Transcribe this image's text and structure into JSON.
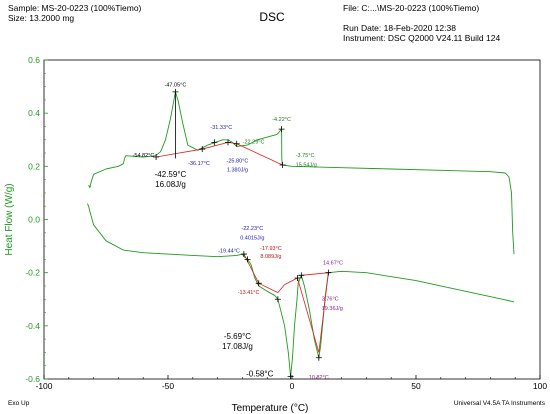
{
  "header": {
    "sample": "Sample: MS-20-0223 (100%Tiemo)",
    "size": "Size:  13.2000 mg",
    "title": "DSC",
    "file": "File: C:...\\MS-20-0223 (100%Tiemo)",
    "run_date": "Run Date: 18-Feb-2020 12:38",
    "instrument": "Instrument: DSC Q2000 V24.11 Build 124"
  },
  "footer": {
    "exo": "Exo Up",
    "software": "Universal V4.5A TA Instruments"
  },
  "colors": {
    "trace": "#1f9a1f",
    "fit": "#e02020",
    "axis_y": "#1f9a1f",
    "blue_ann": "#2020b0",
    "purple_ann": "#8a1a8a",
    "green_ann": "#1f7a1f",
    "red_ann": "#c01010"
  },
  "chart_data": {
    "type": "line",
    "title": "DSC",
    "xlabel": "Temperature (°C)",
    "ylabel": "Heat Flow (W/g)",
    "xlim": [
      -100,
      100
    ],
    "ylim": [
      -0.6,
      0.6
    ],
    "xticks": [
      -100,
      -50,
      0,
      50,
      100
    ],
    "yticks": [
      -0.6,
      -0.4,
      -0.2,
      0.0,
      0.2,
      0.4,
      0.6
    ],
    "xtick_labels": [
      "-100",
      "-50",
      "0",
      "50",
      "100"
    ],
    "ytick_labels": [
      "-0.6",
      "-0.4",
      "-0.2",
      "0.0",
      "0.2",
      "0.4",
      "0.6"
    ],
    "grid": false,
    "series": [
      {
        "segment": "heating",
        "points": [
          [
            -82,
            0.13
          ],
          [
            -81.5,
            0.12
          ],
          [
            -81,
            0.14
          ],
          [
            -80,
            0.17
          ],
          [
            -75,
            0.19
          ],
          [
            -70,
            0.2
          ],
          [
            -68,
            0.21
          ],
          [
            -67.5,
            0.23
          ],
          [
            -67,
            0.24
          ],
          [
            -60,
            0.235
          ],
          [
            -55,
            0.24
          ],
          [
            -53,
            0.255
          ],
          [
            -51,
            0.3
          ],
          [
            -49,
            0.38
          ],
          [
            -47,
            0.48
          ],
          [
            -46,
            0.45
          ],
          [
            -44,
            0.36
          ],
          [
            -42,
            0.28
          ],
          [
            -40,
            0.27
          ],
          [
            -38,
            0.26
          ],
          [
            -36,
            0.27
          ],
          [
            -34,
            0.28
          ],
          [
            -31,
            0.29
          ],
          [
            -28,
            0.3
          ],
          [
            -25.8,
            0.3
          ],
          [
            -24,
            0.29
          ],
          [
            -22.3,
            0.275
          ],
          [
            -18,
            0.28
          ],
          [
            -14,
            0.3
          ],
          [
            -10,
            0.31
          ],
          [
            -6,
            0.32
          ],
          [
            -4.2,
            0.34
          ],
          [
            -4.1,
            0.23
          ],
          [
            -3.9,
            0.205
          ],
          [
            0,
            0.2
          ],
          [
            20,
            0.195
          ],
          [
            40,
            0.19
          ],
          [
            60,
            0.185
          ],
          [
            80,
            0.18
          ],
          [
            86,
            0.175
          ],
          [
            87.5,
            0.16
          ],
          [
            88.5,
            0.1
          ],
          [
            89,
            -0.05
          ],
          [
            89.5,
            -0.13
          ]
        ]
      },
      {
        "segment": "cooling",
        "points": [
          [
            -82.5,
            0.06
          ],
          [
            -82,
            0.05
          ],
          [
            -81.5,
            0.03
          ],
          [
            -80,
            -0.02
          ],
          [
            -75,
            -0.08
          ],
          [
            -68,
            -0.115
          ],
          [
            -60,
            -0.125
          ],
          [
            -50,
            -0.13
          ],
          [
            -40,
            -0.135
          ],
          [
            -30,
            -0.14
          ],
          [
            -22.2,
            -0.135
          ],
          [
            -20,
            -0.13
          ],
          [
            -19.4,
            -0.14
          ],
          [
            -18.5,
            -0.145
          ],
          [
            -17.9,
            -0.15
          ],
          [
            -16.5,
            -0.17
          ],
          [
            -15,
            -0.22
          ],
          [
            -13.4,
            -0.25
          ],
          [
            -10,
            -0.27
          ],
          [
            -7,
            -0.285
          ],
          [
            -5.7,
            -0.3
          ],
          [
            -3,
            -0.4
          ],
          [
            -1.5,
            -0.5
          ],
          [
            -0.58,
            -0.59
          ],
          [
            0.2,
            -0.52
          ],
          [
            1,
            -0.4
          ],
          [
            2,
            -0.3
          ],
          [
            2.5,
            -0.24
          ],
          [
            3.76,
            -0.21
          ],
          [
            5,
            -0.25
          ],
          [
            7,
            -0.34
          ],
          [
            9,
            -0.45
          ],
          [
            10.82,
            -0.52
          ],
          [
            11.5,
            -0.48
          ],
          [
            12.5,
            -0.38
          ],
          [
            13.5,
            -0.28
          ],
          [
            14.67,
            -0.2
          ],
          [
            20,
            -0.195
          ],
          [
            30,
            -0.2
          ],
          [
            50,
            -0.23
          ],
          [
            70,
            -0.27
          ],
          [
            85,
            -0.3
          ],
          [
            89.5,
            -0.31
          ]
        ]
      }
    ],
    "fit_lines": [
      [
        [
          -54.8,
          0.235
        ],
        [
          -36.2,
          0.265
        ]
      ],
      [
        [
          -36.2,
          0.265
        ],
        [
          -25.8,
          0.29
        ]
      ],
      [
        [
          -25.8,
          0.29
        ],
        [
          -22.3,
          0.285
        ]
      ],
      [
        [
          -22.3,
          0.285
        ],
        [
          -3.8,
          0.205
        ]
      ],
      [
        [
          -47,
          0.48
        ],
        [
          -47,
          0.23
        ]
      ],
      [
        [
          -19.4,
          -0.13
        ],
        [
          -13.4,
          -0.24
        ]
      ],
      [
        [
          -13.4,
          -0.24
        ],
        [
          -5.7,
          -0.275
        ]
      ],
      [
        [
          -5.7,
          -0.275
        ],
        [
          -3,
          -0.245
        ]
      ],
      [
        [
          -3,
          -0.245
        ],
        [
          2.2,
          -0.22
        ]
      ],
      [
        [
          2.2,
          -0.22
        ],
        [
          10.82,
          -0.5
        ]
      ],
      [
        [
          10.82,
          -0.5
        ],
        [
          14.67,
          -0.2
        ]
      ],
      [
        [
          3.76,
          -0.21
        ],
        [
          14.67,
          -0.2
        ]
      ]
    ],
    "markers": [
      [
        -54.8,
        0.235
      ],
      [
        -47,
        0.48
      ],
      [
        -36.2,
        0.265
      ],
      [
        -31.3,
        0.29
      ],
      [
        -25.8,
        0.29
      ],
      [
        -22.3,
        0.285
      ],
      [
        -4.2,
        0.34
      ],
      [
        -3.8,
        0.205
      ],
      [
        -19.4,
        -0.13
      ],
      [
        -17.9,
        -0.15
      ],
      [
        -13.4,
        -0.24
      ],
      [
        -5.7,
        -0.3
      ],
      [
        -0.58,
        -0.59
      ],
      [
        3.76,
        -0.21
      ],
      [
        10.82,
        -0.52
      ],
      [
        14.67,
        -0.2
      ],
      [
        2.2,
        -0.22
      ]
    ],
    "annotations": [
      {
        "text": "-47.05°C",
        "x": -47,
        "y": 0.5,
        "color": "black",
        "anchor": "middle"
      },
      {
        "text": "-54.82°C",
        "x": -55.5,
        "y": 0.235,
        "color": "black",
        "anchor": "end"
      },
      {
        "text": "-36.17°C",
        "x": -37.5,
        "y": 0.205,
        "color": "blue",
        "anchor": "middle"
      },
      {
        "text": "-31.33°C",
        "x": -28.5,
        "y": 0.34,
        "color": "blue",
        "anchor": "middle"
      },
      {
        "text": "-25.80°C",
        "x": -22,
        "y": 0.215,
        "color": "blue",
        "anchor": "middle"
      },
      {
        "text": "1.380J/g",
        "x": -22,
        "y": 0.18,
        "color": "blue",
        "anchor": "middle"
      },
      {
        "text": "-22.29°C",
        "x": -15.5,
        "y": 0.285,
        "color": "green",
        "anchor": "middle"
      },
      {
        "text": "-4.22°C",
        "x": -4.2,
        "y": 0.37,
        "color": "green",
        "anchor": "middle"
      },
      {
        "text": "-3.75°C",
        "x": 1.5,
        "y": 0.235,
        "color": "green",
        "anchor": "start"
      },
      {
        "text": "15.54J/g",
        "x": 1.5,
        "y": 0.2,
        "color": "green",
        "anchor": "start"
      },
      {
        "text": "-22.23°C",
        "x": -16,
        "y": -0.04,
        "color": "blue",
        "anchor": "middle"
      },
      {
        "text": "0.4015J/g",
        "x": -16,
        "y": -0.075,
        "color": "blue",
        "anchor": "middle"
      },
      {
        "text": "-19.44°C",
        "x": -21,
        "y": -0.125,
        "color": "blue",
        "anchor": "end"
      },
      {
        "text": "-17.93°C",
        "x": -8.5,
        "y": -0.115,
        "color": "red",
        "anchor": "middle"
      },
      {
        "text": "8.089J/g",
        "x": -8.5,
        "y": -0.145,
        "color": "red",
        "anchor": "middle"
      },
      {
        "text": "-13.41°C",
        "x": -17.5,
        "y": -0.28,
        "color": "red",
        "anchor": "middle"
      },
      {
        "text": "14.67°C",
        "x": 12.5,
        "y": -0.17,
        "color": "purple",
        "anchor": "start"
      },
      {
        "text": "3.76°C",
        "x": 12,
        "y": -0.305,
        "color": "purple",
        "anchor": "start"
      },
      {
        "text": "19.36J/g",
        "x": 12,
        "y": -0.34,
        "color": "purple",
        "anchor": "start"
      },
      {
        "text": "10.82°C",
        "x": 10.8,
        "y": -0.6,
        "color": "purple",
        "anchor": "middle"
      }
    ],
    "big_annotations": [
      {
        "line1": "-42.59°C",
        "line2": "16.08J/g",
        "x": -49,
        "y": 0.16
      },
      {
        "line1": "-5.69°C",
        "line2": "17.08J/g",
        "x": -22,
        "y": -0.45
      },
      {
        "line1": "-0.58°C",
        "line2": "",
        "x": -13,
        "y": -0.59
      }
    ]
  }
}
